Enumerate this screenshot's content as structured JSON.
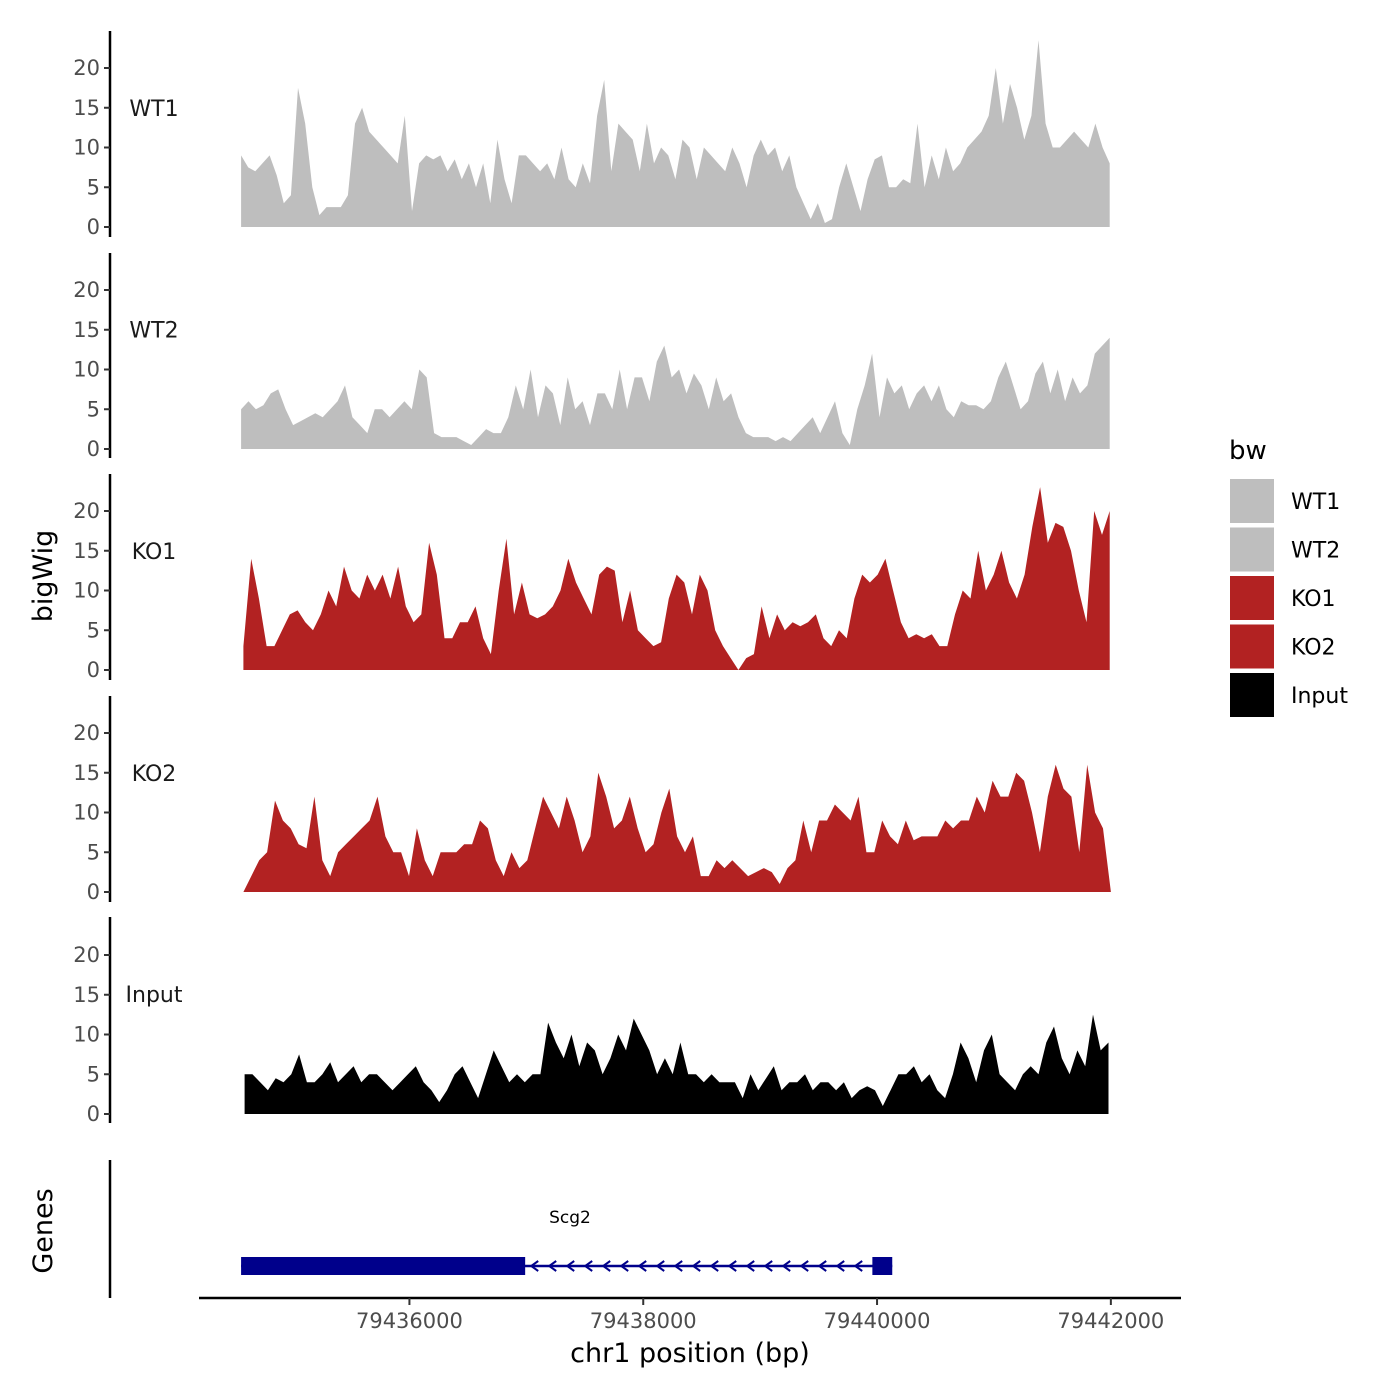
{
  "chart_data": {
    "type": "area",
    "ylabel": "bigWig",
    "xlabel": "chr1 position (bp)",
    "genes_label": "Genes",
    "xlim": [
      79434200,
      79442600
    ],
    "ylim": [
      0,
      24
    ],
    "y_ticks": [
      0,
      5,
      10,
      15,
      20
    ],
    "x_ticks": [
      79436000,
      79438000,
      79440000,
      79442000
    ],
    "x_tick_labels": [
      "79436000",
      "79438000",
      "79440000",
      "79442000"
    ],
    "legend": {
      "title": "bw",
      "entries": [
        {
          "label": "WT1",
          "color": "#bebebe"
        },
        {
          "label": "WT2",
          "color": "#bebebe"
        },
        {
          "label": "KO1",
          "color": "#b22222"
        },
        {
          "label": "KO2",
          "color": "#b22222"
        },
        {
          "label": "Input",
          "color": "#000000"
        }
      ]
    },
    "series": [
      {
        "name": "WT1",
        "color": "#bebebe",
        "x_start": 79434560,
        "x_end": 79441990,
        "values": [
          9,
          7.5,
          7,
          8,
          9,
          6.5,
          3,
          4,
          17.5,
          13,
          5,
          1.5,
          2.5,
          2.5,
          2.5,
          4,
          13,
          15,
          12,
          11,
          10,
          9,
          8,
          14,
          2,
          8,
          9,
          8.5,
          9,
          7,
          8.5,
          6,
          8,
          5,
          8,
          3,
          11,
          6,
          3,
          9,
          9,
          8,
          7,
          8,
          6,
          10,
          6,
          5,
          8,
          5.5,
          14,
          18.5,
          7,
          13,
          12,
          11,
          7,
          13,
          8,
          10,
          9,
          6,
          11,
          10,
          6,
          10,
          9,
          8,
          7,
          10,
          8,
          5,
          9,
          11,
          9,
          10,
          7,
          9,
          5,
          3,
          1,
          3,
          0.5,
          1,
          5,
          8,
          5,
          2,
          6,
          8.5,
          9,
          5,
          5,
          6,
          5.5,
          13,
          5,
          9,
          6,
          10,
          7,
          8,
          10,
          11,
          12,
          14,
          20,
          13,
          18,
          15,
          11,
          14,
          23.5,
          13,
          10,
          10,
          11,
          12,
          11,
          10,
          13,
          10,
          8
        ]
      },
      {
        "name": "WT2",
        "color": "#bebebe",
        "x_start": 79434560,
        "x_end": 79441990,
        "values": [
          5,
          6,
          5,
          5.5,
          7,
          7.5,
          5,
          3,
          3.5,
          4,
          4.5,
          4,
          5,
          6,
          8,
          4,
          3,
          2,
          5,
          5,
          4,
          5,
          6,
          5,
          10,
          9,
          2,
          1.5,
          1.5,
          1.5,
          1,
          0.5,
          1.5,
          2.5,
          2,
          2,
          4,
          8,
          5,
          10,
          4,
          8,
          7,
          3,
          9,
          5,
          6,
          3,
          7,
          7,
          5,
          10,
          5,
          9,
          9,
          6,
          11,
          13,
          9,
          10,
          7,
          9.5,
          8,
          5,
          9,
          6,
          7,
          4,
          2,
          1.5,
          1.5,
          1.5,
          1,
          1.5,
          1,
          2,
          3,
          4,
          2,
          4,
          6,
          2,
          0.5,
          5,
          8,
          12,
          4,
          9,
          7,
          8,
          5,
          7,
          8,
          6,
          8,
          5,
          4,
          6,
          5.5,
          5.5,
          5,
          6,
          9,
          11,
          8,
          5,
          6,
          9.5,
          11,
          7,
          10,
          6,
          9,
          7,
          8,
          12,
          13,
          14
        ]
      },
      {
        "name": "KO1",
        "color": "#b22222",
        "x_start": 79434580,
        "x_end": 79441990,
        "values": [
          3,
          14,
          9,
          3,
          3,
          5,
          7,
          7.5,
          6,
          5,
          7,
          10,
          8,
          13,
          10,
          9,
          12,
          10,
          12,
          9,
          13,
          8,
          6,
          7,
          16,
          12,
          4,
          4,
          6,
          6,
          8,
          4,
          2,
          10,
          16.5,
          7,
          11,
          7,
          6.5,
          7,
          8,
          10,
          14,
          11,
          9,
          7,
          12,
          13,
          12.5,
          6,
          10,
          5,
          4,
          3,
          3.5,
          9,
          12,
          11,
          7,
          12,
          10,
          5,
          3,
          1.5,
          0,
          1.5,
          2,
          8,
          4,
          7,
          5,
          6,
          5.5,
          6,
          7,
          4,
          3,
          5,
          4,
          9,
          12,
          11,
          12,
          14,
          10,
          6,
          4,
          4.5,
          4,
          4.5,
          3,
          3,
          7,
          10,
          9,
          15,
          10,
          12,
          15,
          11,
          9,
          12,
          18,
          23,
          16,
          18.5,
          18,
          15,
          10,
          6,
          20,
          17,
          20
        ]
      },
      {
        "name": "KO2",
        "color": "#b22222",
        "x_start": 79434580,
        "x_end": 79442000,
        "values": [
          0,
          2,
          4,
          5,
          11.5,
          9,
          8,
          6,
          5.5,
          12,
          4,
          2,
          5,
          6,
          7,
          8,
          9,
          12,
          7,
          5,
          5,
          2,
          8,
          4,
          2,
          5,
          5,
          5,
          6,
          6,
          9,
          8,
          4,
          2,
          5,
          3,
          4,
          8,
          12,
          10,
          8,
          12,
          9,
          5,
          7,
          15,
          12,
          8,
          9,
          12,
          8,
          5,
          6,
          10,
          13,
          7,
          5,
          7,
          2,
          2,
          4,
          3,
          4,
          3,
          2,
          2.5,
          3,
          2.5,
          1,
          3,
          4,
          9,
          5,
          9,
          9,
          11,
          10,
          9,
          12,
          5,
          5,
          9,
          7,
          6,
          9,
          6.5,
          7,
          7,
          7,
          9,
          8,
          9,
          9,
          12,
          10,
          14,
          12,
          12,
          15,
          14,
          10,
          5,
          12,
          16,
          13,
          12,
          5,
          16,
          10,
          8,
          0
        ]
      },
      {
        "name": "Input",
        "color": "#000000",
        "x_start": 79434590,
        "x_end": 79441980,
        "values": [
          5,
          5,
          4,
          3,
          4.5,
          4,
          5,
          7.5,
          4,
          4,
          5,
          6.5,
          4,
          5,
          6,
          4,
          5,
          5,
          4,
          3,
          4,
          5,
          6,
          4,
          3,
          1.5,
          3,
          5,
          6,
          4,
          2,
          5,
          8,
          6,
          4,
          5,
          4,
          5,
          5,
          11.5,
          9,
          7,
          10,
          6,
          9,
          8,
          5,
          7,
          10,
          8,
          12,
          10,
          8,
          5,
          7,
          5,
          9,
          5,
          5,
          4,
          5,
          4,
          4,
          4,
          2,
          5,
          3,
          4.5,
          6,
          3,
          4,
          4,
          5,
          3,
          4,
          4,
          3,
          4,
          2,
          3,
          3.5,
          3,
          1,
          3,
          5,
          5,
          6,
          4,
          5,
          3,
          2,
          5,
          9,
          7,
          4,
          8,
          10,
          5,
          4,
          3,
          5,
          6,
          5,
          9,
          11,
          7,
          5,
          8,
          6,
          12.5,
          8,
          9
        ]
      }
    ],
    "gene": {
      "name": "Scg2",
      "color": "#00008b",
      "strand": "-",
      "start": 79434560,
      "end": 79440130,
      "exons": [
        [
          79434560,
          79436990
        ],
        [
          79439960,
          79440130
        ]
      ]
    }
  }
}
